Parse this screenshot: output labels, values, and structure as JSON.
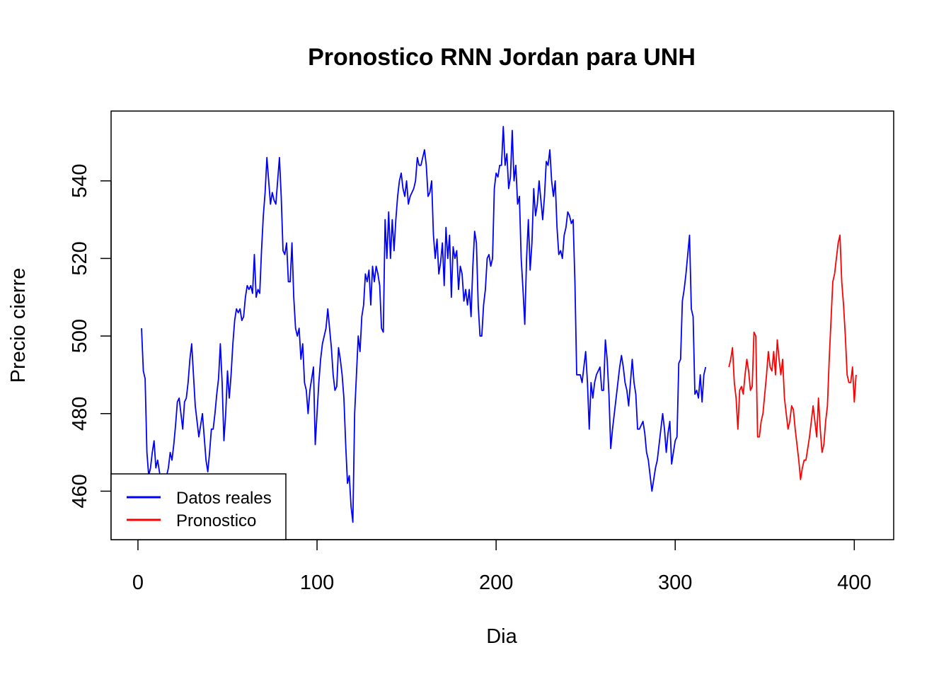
{
  "chart_data": {
    "type": "line",
    "title": "Pronostico RNN Jordan para  UNH",
    "xlabel": "Dia",
    "ylabel": "Precio cierre",
    "xlim": [
      -15,
      422
    ],
    "ylim": [
      447.5,
      558
    ],
    "x_ticks": [
      0,
      100,
      200,
      300,
      400
    ],
    "x_tick_labels": [
      "0",
      "100",
      "200",
      "300",
      "400"
    ],
    "y_ticks": [
      460,
      480,
      500,
      520,
      540
    ],
    "y_tick_labels": [
      "460",
      "480",
      "500",
      "520",
      "540"
    ],
    "grid": false,
    "legend_position": "bottom-left",
    "series": [
      {
        "name": "Datos reales",
        "color": "#0000FF",
        "x_start": 2,
        "values": [
          502,
          491,
          489,
          470,
          464,
          466,
          470,
          473,
          466,
          468,
          465,
          462,
          458,
          461,
          464,
          466,
          470,
          468,
          472,
          477,
          483,
          484,
          480,
          476,
          483,
          484,
          488,
          494,
          498,
          490,
          482,
          478,
          474,
          477,
          480,
          474,
          468,
          465,
          470,
          476,
          476,
          480,
          485,
          489,
          498,
          488,
          473,
          480,
          491,
          484,
          490,
          498,
          504,
          507,
          506,
          507,
          504,
          505,
          510,
          513,
          512,
          513,
          511,
          521,
          510,
          512,
          511,
          522,
          531,
          537,
          546,
          540,
          534,
          537,
          535,
          534,
          540,
          546,
          536,
          522,
          521,
          524,
          514,
          514,
          524,
          510,
          502,
          500,
          502,
          494,
          498,
          488,
          486,
          480,
          486,
          489,
          492,
          472,
          480,
          488,
          494,
          498,
          500,
          502,
          507,
          502,
          497,
          490,
          486,
          487,
          497,
          494,
          490,
          484,
          472,
          462,
          464,
          456,
          452,
          480,
          490,
          500,
          496,
          505,
          508,
          516,
          514,
          517,
          508,
          518,
          514,
          518,
          516,
          513,
          502,
          501,
          530,
          520,
          532,
          520,
          530,
          522,
          530,
          536,
          540,
          542,
          538,
          536,
          540,
          534,
          536,
          537,
          538,
          540,
          546,
          544,
          544,
          546,
          548,
          544,
          536,
          537,
          540,
          526,
          520,
          525,
          516,
          519,
          524,
          513,
          528,
          520,
          526,
          510,
          523,
          520,
          522,
          512,
          518,
          516,
          509,
          512,
          508,
          512,
          505,
          518,
          527,
          524,
          508,
          500,
          500,
          508,
          512,
          520,
          521,
          518,
          520,
          538,
          542,
          541,
          544,
          544,
          554,
          544,
          547,
          538,
          541,
          553,
          540,
          544,
          534,
          536,
          520,
          512,
          503,
          520,
          530,
          517,
          524,
          538,
          531,
          534,
          540,
          535,
          530,
          536,
          545,
          544,
          548,
          540,
          536,
          540,
          528,
          521,
          522,
          520,
          526,
          528,
          532,
          531,
          529,
          530,
          514,
          490,
          490,
          490,
          488,
          492,
          496,
          488,
          476,
          488,
          484,
          488,
          490,
          491,
          492,
          486,
          486,
          499,
          494,
          485,
          471,
          476,
          480,
          484,
          488,
          492,
          495,
          492,
          488,
          486,
          482,
          488,
          494,
          488,
          485,
          476,
          476,
          477,
          478,
          475,
          470,
          468,
          464,
          460,
          463,
          466,
          468,
          472,
          476,
          480,
          476,
          470,
          475,
          478,
          467,
          470,
          473,
          474,
          493,
          494,
          509,
          512,
          516,
          521,
          526,
          507,
          505,
          485,
          486,
          484,
          490,
          483,
          490,
          492
        ]
      },
      {
        "name": "Pronostico",
        "color": "#FF0000",
        "x_start": 330,
        "values": [
          492,
          494,
          497,
          488,
          484,
          476,
          486,
          487,
          485,
          490,
          494,
          491,
          486,
          487,
          501,
          500,
          474,
          474,
          478,
          480,
          485,
          490,
          496,
          492,
          491,
          496,
          490,
          499,
          494,
          490,
          494,
          484,
          480,
          476,
          478,
          482,
          481,
          476,
          472,
          468,
          463,
          466,
          468,
          468,
          471,
          474,
          478,
          482,
          478,
          474,
          484,
          476,
          470,
          472,
          478,
          482,
          494,
          504,
          514,
          516,
          520,
          524,
          526,
          514,
          508,
          500,
          490,
          488,
          488,
          492,
          483,
          490
        ]
      }
    ]
  }
}
